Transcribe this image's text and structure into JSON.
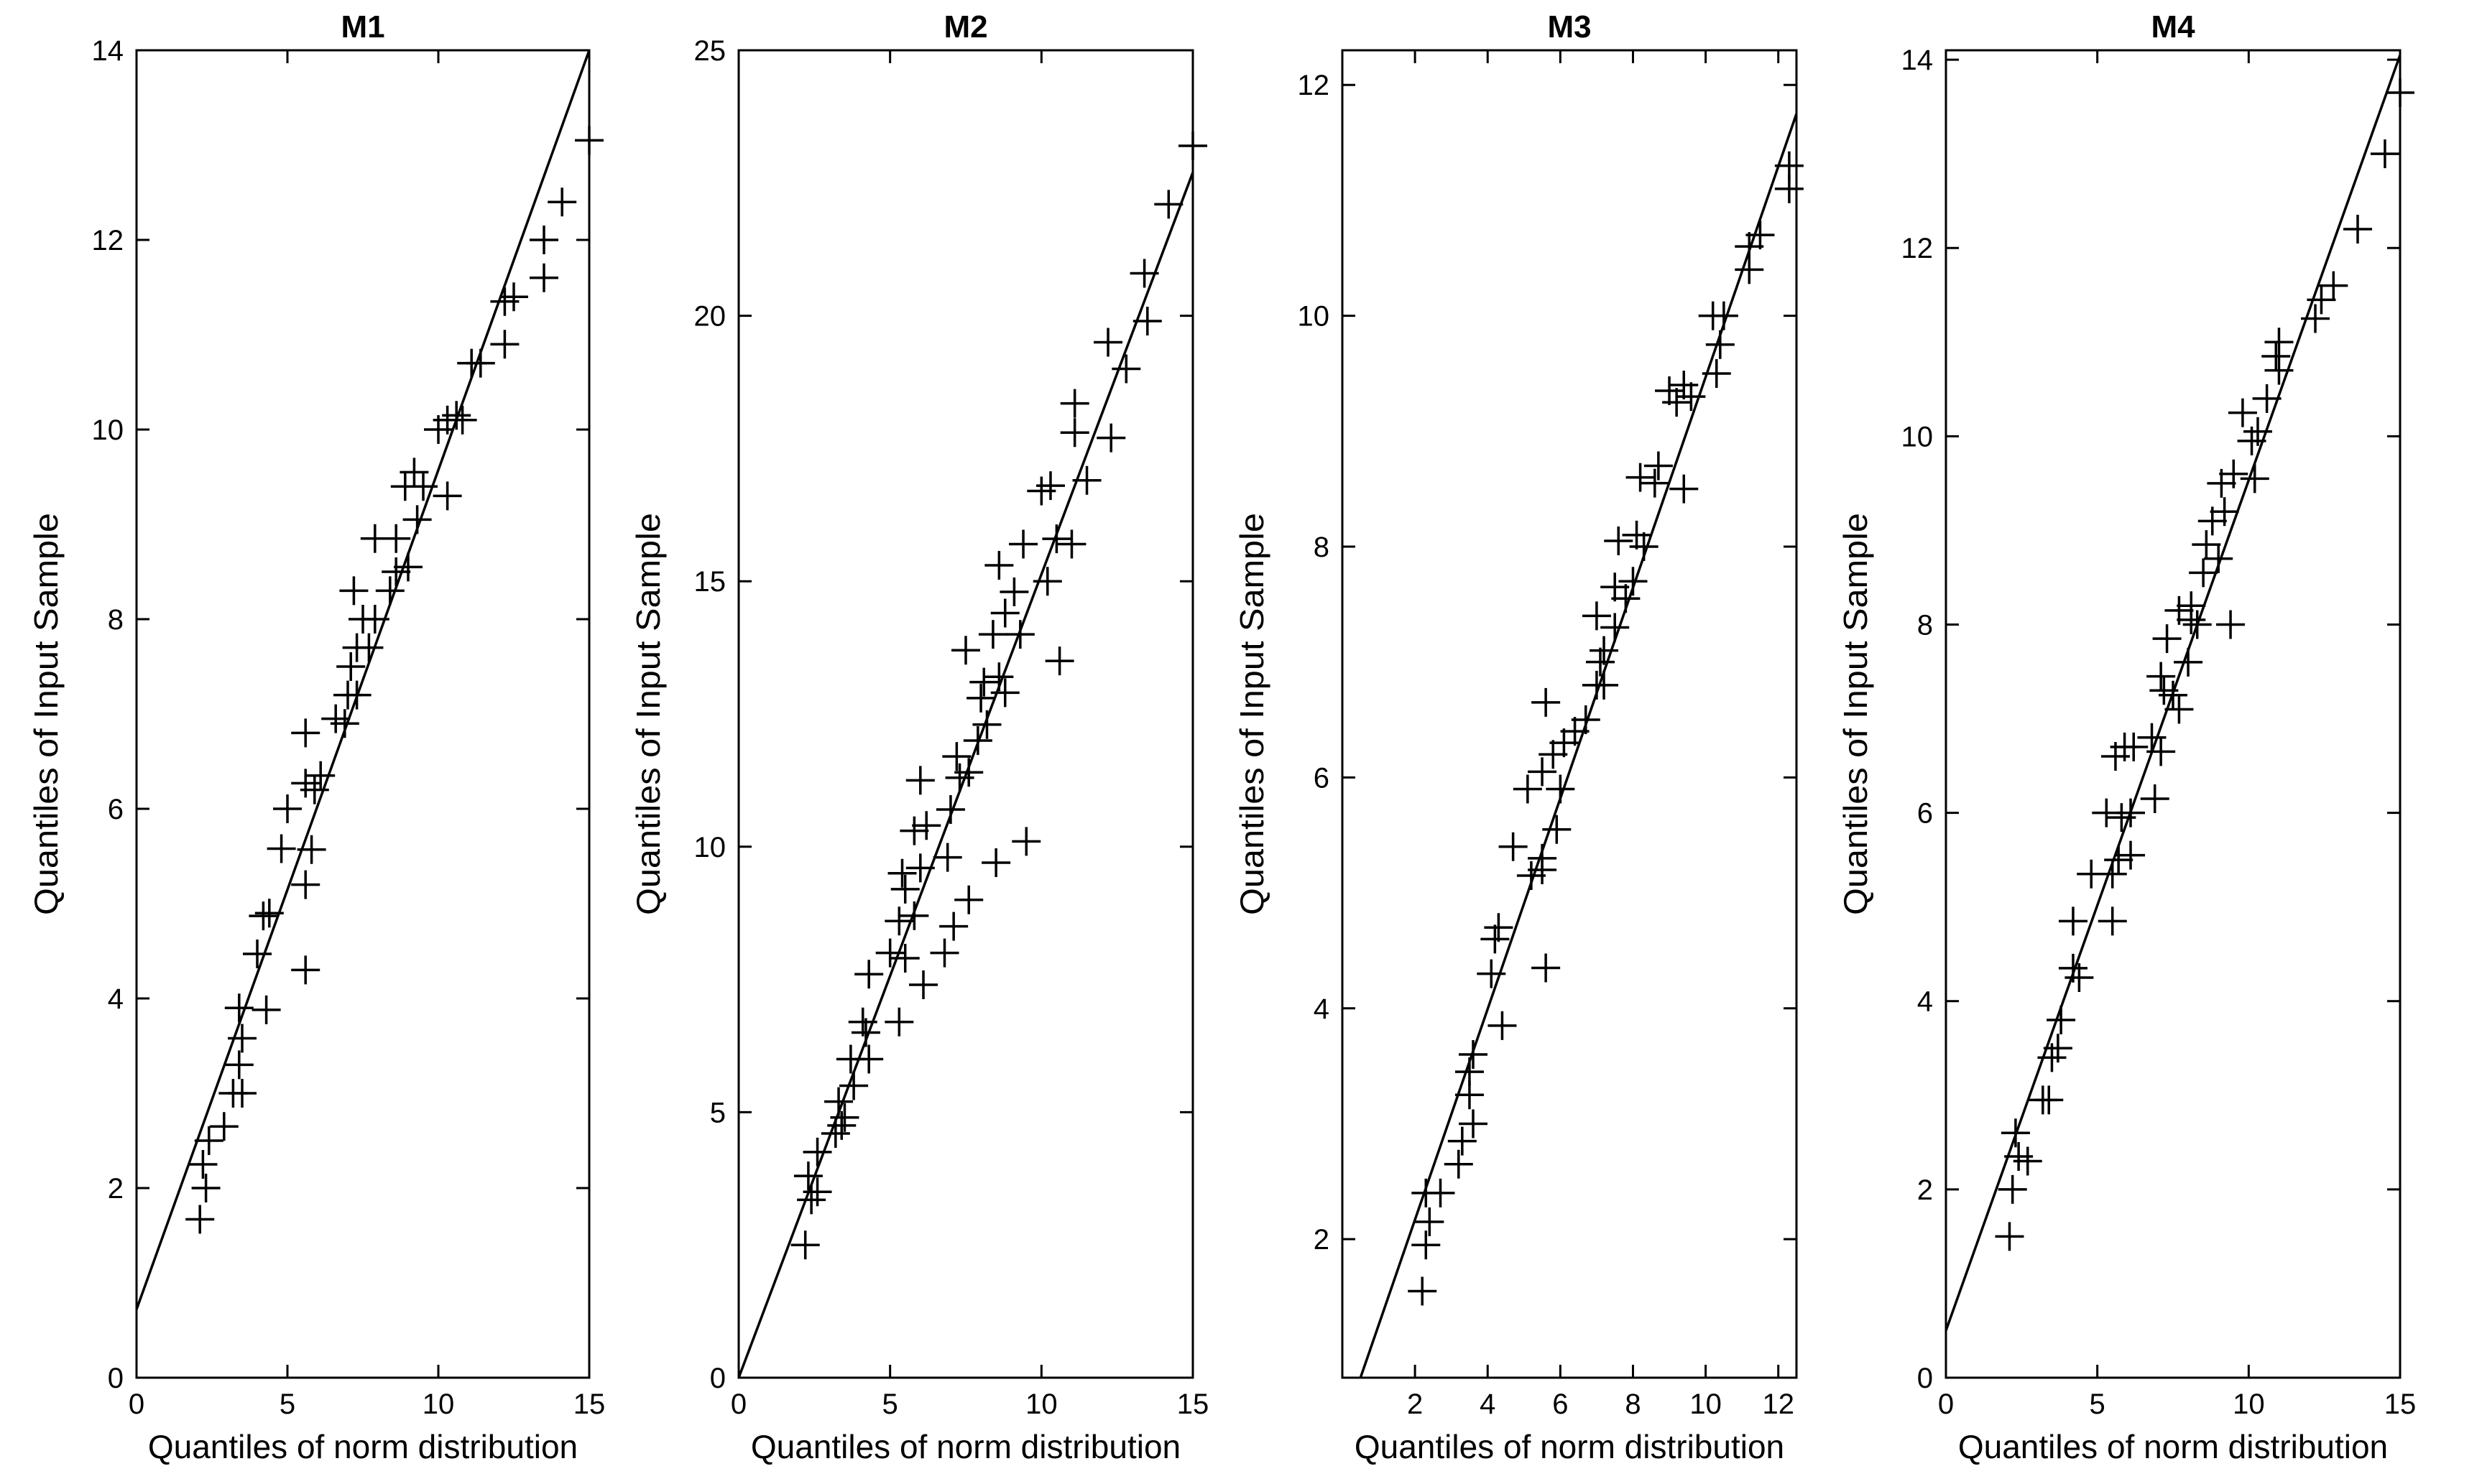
{
  "colors": {
    "background": "#ffffff",
    "ink": "#000000"
  },
  "chart_data": [
    {
      "type": "scatter",
      "title": "M1",
      "xlabel": "Quantiles of norm distribution",
      "ylabel": "Quantiles of Input Sample",
      "xlim": [
        0,
        15
      ],
      "ylim": [
        0,
        14
      ],
      "xticks": [
        0,
        5,
        10,
        15
      ],
      "yticks": [
        0,
        2,
        4,
        6,
        8,
        10,
        12,
        14
      ],
      "marker": "+",
      "reference_line": [
        [
          0,
          0.72
        ],
        [
          15,
          14.0
        ]
      ],
      "points": [
        [
          2.1,
          1.67
        ],
        [
          2.3,
          2.0
        ],
        [
          2.2,
          2.25
        ],
        [
          2.4,
          2.5
        ],
        [
          2.9,
          2.65
        ],
        [
          3.2,
          3.0
        ],
        [
          3.5,
          3.0
        ],
        [
          3.4,
          3.3
        ],
        [
          3.5,
          3.58
        ],
        [
          3.4,
          3.9
        ],
        [
          4.3,
          3.88
        ],
        [
          4.0,
          4.47
        ],
        [
          4.2,
          4.87
        ],
        [
          4.4,
          4.9
        ],
        [
          5.6,
          4.3
        ],
        [
          4.8,
          5.58
        ],
        [
          5.6,
          5.2
        ],
        [
          5.8,
          5.57
        ],
        [
          5.0,
          6.0
        ],
        [
          5.6,
          6.27
        ],
        [
          5.9,
          6.2
        ],
        [
          6.1,
          6.35
        ],
        [
          5.6,
          6.8
        ],
        [
          6.6,
          6.95
        ],
        [
          6.9,
          6.9
        ],
        [
          7.0,
          7.2
        ],
        [
          7.3,
          7.2
        ],
        [
          7.1,
          7.5
        ],
        [
          7.3,
          7.7
        ],
        [
          7.7,
          7.7
        ],
        [
          7.5,
          8.0
        ],
        [
          7.2,
          8.3
        ],
        [
          7.9,
          8.0
        ],
        [
          7.9,
          8.85
        ],
        [
          8.4,
          8.3
        ],
        [
          8.6,
          8.5
        ],
        [
          8.6,
          8.85
        ],
        [
          9.0,
          8.55
        ],
        [
          9.3,
          9.05
        ],
        [
          8.9,
          9.4
        ],
        [
          9.2,
          9.55
        ],
        [
          9.5,
          9.4
        ],
        [
          10.3,
          9.3
        ],
        [
          10.0,
          10.0
        ],
        [
          10.3,
          10.1
        ],
        [
          10.8,
          10.1
        ],
        [
          10.6,
          10.15
        ],
        [
          11.1,
          10.7
        ],
        [
          11.4,
          10.7
        ],
        [
          12.2,
          10.9
        ],
        [
          12.2,
          11.35
        ],
        [
          12.5,
          11.4
        ],
        [
          13.5,
          11.6
        ],
        [
          13.5,
          12.0
        ],
        [
          14.1,
          12.4
        ],
        [
          15.0,
          13.05
        ]
      ]
    },
    {
      "type": "scatter",
      "title": "M2",
      "xlabel": "Quantiles of norm distribution",
      "ylabel": "Quantiles of Input Sample",
      "xlim": [
        0,
        15
      ],
      "ylim": [
        0,
        25
      ],
      "xticks": [
        0,
        5,
        10,
        15
      ],
      "yticks": [
        0,
        5,
        10,
        15,
        20,
        25
      ],
      "marker": "+",
      "reference_line": [
        [
          0,
          0.0
        ],
        [
          15,
          22.7
        ]
      ],
      "points": [
        [
          2.2,
          2.5
        ],
        [
          2.4,
          3.35
        ],
        [
          2.6,
          3.5
        ],
        [
          2.3,
          3.8
        ],
        [
          2.6,
          4.25
        ],
        [
          3.2,
          4.6
        ],
        [
          3.4,
          4.75
        ],
        [
          3.5,
          4.9
        ],
        [
          3.3,
          5.2
        ],
        [
          3.8,
          5.5
        ],
        [
          4.3,
          6.0
        ],
        [
          3.7,
          6.0
        ],
        [
          4.2,
          6.5
        ],
        [
          4.1,
          6.7
        ],
        [
          5.3,
          6.7
        ],
        [
          4.3,
          7.6
        ],
        [
          5.0,
          8.0
        ],
        [
          5.5,
          7.9
        ],
        [
          6.1,
          7.4
        ],
        [
          5.3,
          8.6
        ],
        [
          5.8,
          8.7
        ],
        [
          5.5,
          9.2
        ],
        [
          5.4,
          9.5
        ],
        [
          6.0,
          9.6
        ],
        [
          6.8,
          8.0
        ],
        [
          7.1,
          8.5
        ],
        [
          7.6,
          9.0
        ],
        [
          8.5,
          9.7
        ],
        [
          9.5,
          10.1
        ],
        [
          5.8,
          10.3
        ],
        [
          6.2,
          10.4
        ],
        [
          6.9,
          9.8
        ],
        [
          7.0,
          10.7
        ],
        [
          6.0,
          11.25
        ],
        [
          7.3,
          11.3
        ],
        [
          7.6,
          11.4
        ],
        [
          7.2,
          11.7
        ],
        [
          7.9,
          12.0
        ],
        [
          8.2,
          12.3
        ],
        [
          8.0,
          12.8
        ],
        [
          8.1,
          13.1
        ],
        [
          8.6,
          13.2
        ],
        [
          8.8,
          12.9
        ],
        [
          7.5,
          13.7
        ],
        [
          8.4,
          14.0
        ],
        [
          9.3,
          14.0
        ],
        [
          8.8,
          14.4
        ],
        [
          9.1,
          14.8
        ],
        [
          8.6,
          15.3
        ],
        [
          9.4,
          15.7
        ],
        [
          10.2,
          15.0
        ],
        [
          10.5,
          15.8
        ],
        [
          10.6,
          13.5
        ],
        [
          11.0,
          15.7
        ],
        [
          11.5,
          16.9
        ],
        [
          10.0,
          16.7
        ],
        [
          10.3,
          16.8
        ],
        [
          11.1,
          17.8
        ],
        [
          12.3,
          17.7
        ],
        [
          11.1,
          18.35
        ],
        [
          12.2,
          19.5
        ],
        [
          12.8,
          19.0
        ],
        [
          13.5,
          19.9
        ],
        [
          13.4,
          20.8
        ],
        [
          14.2,
          22.1
        ],
        [
          15.0,
          23.2
        ]
      ]
    },
    {
      "type": "scatter",
      "title": "M3",
      "xlabel": "Quantiles of norm distribution",
      "ylabel": "Quantiles of Input Sample",
      "xlim": [
        0,
        12.5
      ],
      "ylim": [
        0.8,
        12.3
      ],
      "xticks": [
        2,
        4,
        6,
        8,
        10,
        12
      ],
      "yticks": [
        2,
        4,
        6,
        8,
        10,
        12
      ],
      "marker": "+",
      "reference_line": [
        [
          0.5,
          0.8
        ],
        [
          12.5,
          11.75
        ]
      ],
      "points": [
        [
          2.2,
          1.55
        ],
        [
          2.3,
          1.95
        ],
        [
          2.4,
          2.15
        ],
        [
          2.3,
          2.4
        ],
        [
          2.7,
          2.4
        ],
        [
          3.2,
          2.65
        ],
        [
          3.3,
          2.85
        ],
        [
          3.6,
          3.0
        ],
        [
          3.5,
          3.25
        ],
        [
          3.5,
          3.45
        ],
        [
          3.6,
          3.6
        ],
        [
          4.1,
          4.3
        ],
        [
          4.4,
          3.85
        ],
        [
          4.2,
          4.6
        ],
        [
          4.3,
          4.7
        ],
        [
          5.6,
          4.35
        ],
        [
          5.2,
          5.15
        ],
        [
          5.5,
          5.2
        ],
        [
          5.5,
          5.3
        ],
        [
          4.7,
          5.4
        ],
        [
          5.9,
          5.55
        ],
        [
          5.1,
          5.9
        ],
        [
          5.5,
          6.05
        ],
        [
          6.0,
          5.9
        ],
        [
          5.8,
          6.2
        ],
        [
          6.1,
          6.3
        ],
        [
          5.6,
          6.65
        ],
        [
          6.4,
          6.4
        ],
        [
          6.7,
          6.5
        ],
        [
          7.0,
          6.8
        ],
        [
          7.2,
          6.8
        ],
        [
          7.1,
          7.0
        ],
        [
          7.2,
          7.1
        ],
        [
          7.0,
          7.4
        ],
        [
          7.5,
          7.3
        ],
        [
          7.5,
          7.65
        ],
        [
          7.8,
          7.55
        ],
        [
          7.6,
          8.05
        ],
        [
          8.0,
          7.7
        ],
        [
          8.3,
          8.0
        ],
        [
          8.1,
          8.1
        ],
        [
          8.6,
          8.55
        ],
        [
          9.4,
          8.5
        ],
        [
          8.2,
          8.6
        ],
        [
          8.7,
          8.7
        ],
        [
          9.2,
          9.25
        ],
        [
          9.0,
          9.35
        ],
        [
          9.6,
          9.3
        ],
        [
          9.4,
          9.4
        ],
        [
          10.3,
          9.5
        ],
        [
          10.4,
          9.75
        ],
        [
          10.2,
          10.0
        ],
        [
          10.5,
          10.0
        ],
        [
          11.2,
          10.4
        ],
        [
          11.2,
          10.6
        ],
        [
          11.5,
          10.7
        ],
        [
          12.3,
          11.1
        ],
        [
          12.3,
          11.3
        ]
      ]
    },
    {
      "type": "scatter",
      "title": "M4",
      "xlabel": "Quantiles of norm distribution",
      "ylabel": "Quantiles of Input Sample",
      "xlim": [
        0,
        15
      ],
      "ylim": [
        0,
        14.1
      ],
      "xticks": [
        0,
        5,
        10,
        15
      ],
      "yticks": [
        0,
        2,
        4,
        6,
        8,
        10,
        12,
        14
      ],
      "marker": "+",
      "reference_line": [
        [
          0,
          0.5
        ],
        [
          15,
          14.05
        ]
      ],
      "points": [
        [
          2.1,
          1.5
        ],
        [
          2.2,
          2.0
        ],
        [
          2.4,
          2.35
        ],
        [
          2.7,
          2.3
        ],
        [
          2.3,
          2.6
        ],
        [
          3.2,
          2.95
        ],
        [
          3.4,
          2.95
        ],
        [
          3.5,
          3.4
        ],
        [
          3.7,
          3.5
        ],
        [
          3.8,
          3.8
        ],
        [
          4.4,
          4.25
        ],
        [
          4.2,
          4.35
        ],
        [
          4.2,
          4.85
        ],
        [
          5.5,
          4.85
        ],
        [
          4.8,
          5.35
        ],
        [
          5.5,
          5.35
        ],
        [
          5.7,
          5.5
        ],
        [
          6.1,
          5.55
        ],
        [
          5.3,
          6.0
        ],
        [
          5.8,
          5.95
        ],
        [
          6.1,
          6.0
        ],
        [
          5.6,
          6.6
        ],
        [
          5.9,
          6.7
        ],
        [
          6.2,
          6.7
        ],
        [
          6.9,
          6.15
        ],
        [
          7.1,
          6.65
        ],
        [
          6.8,
          6.8
        ],
        [
          7.7,
          7.1
        ],
        [
          7.5,
          7.25
        ],
        [
          7.2,
          7.3
        ],
        [
          7.1,
          7.45
        ],
        [
          7.3,
          7.85
        ],
        [
          8.0,
          7.6
        ],
        [
          8.1,
          8.05
        ],
        [
          7.7,
          8.15
        ],
        [
          8.3,
          8.0
        ],
        [
          8.1,
          8.2
        ],
        [
          9.4,
          8.0
        ],
        [
          8.5,
          8.55
        ],
        [
          8.6,
          8.85
        ],
        [
          9.0,
          8.7
        ],
        [
          8.8,
          9.1
        ],
        [
          9.2,
          9.2
        ],
        [
          9.1,
          9.5
        ],
        [
          9.5,
          9.6
        ],
        [
          10.2,
          9.55
        ],
        [
          10.1,
          9.95
        ],
        [
          10.3,
          10.05
        ],
        [
          9.8,
          10.25
        ],
        [
          10.6,
          10.4
        ],
        [
          11.0,
          10.7
        ],
        [
          10.9,
          10.85
        ],
        [
          11.0,
          11.0
        ],
        [
          12.2,
          11.25
        ],
        [
          12.4,
          11.45
        ],
        [
          12.8,
          11.6
        ],
        [
          13.6,
          12.2
        ],
        [
          14.5,
          13.0
        ],
        [
          15.0,
          13.65
        ]
      ]
    }
  ]
}
